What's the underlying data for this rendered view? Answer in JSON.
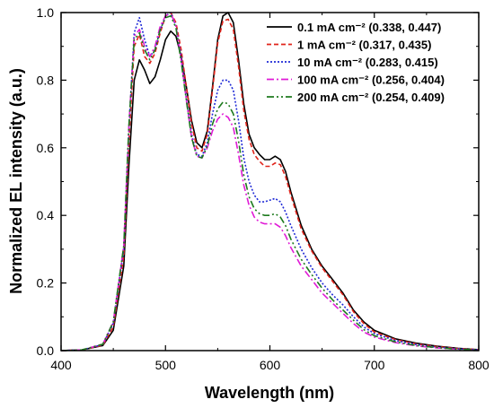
{
  "chart_data": {
    "type": "line",
    "xlabel": "Wavelength (nm)",
    "ylabel": "Normalized EL intensity (a.u.)",
    "xlim": [
      400,
      800
    ],
    "ylim": [
      0,
      1.0
    ],
    "xticks": [
      400,
      500,
      600,
      700,
      800
    ],
    "yticks": [
      0.0,
      0.2,
      0.4,
      0.6,
      0.8,
      1.0
    ],
    "xtick_labels": [
      "400",
      "500",
      "600",
      "700",
      "800"
    ],
    "ytick_labels": [
      "0.0",
      "0.2",
      "0.4",
      "0.6",
      "0.8",
      "1.0"
    ],
    "grid": false,
    "legend_position": "top-right",
    "series": [
      {
        "name": "0.1  mA cm⁻² (0.338, 0.447)",
        "color": "#000000",
        "dash": "solid",
        "x": [
          400,
          420,
          440,
          450,
          460,
          465,
          470,
          475,
          480,
          485,
          490,
          495,
          500,
          505,
          510,
          515,
          520,
          525,
          530,
          535,
          540,
          545,
          550,
          555,
          560,
          565,
          570,
          575,
          580,
          585,
          590,
          595,
          600,
          605,
          610,
          615,
          620,
          630,
          640,
          650,
          660,
          670,
          680,
          690,
          700,
          720,
          740,
          760,
          780,
          800
        ],
        "y": [
          0.0,
          0.002,
          0.015,
          0.06,
          0.25,
          0.55,
          0.8,
          0.86,
          0.83,
          0.79,
          0.81,
          0.86,
          0.92,
          0.945,
          0.93,
          0.87,
          0.78,
          0.68,
          0.615,
          0.6,
          0.65,
          0.78,
          0.92,
          0.99,
          1.0,
          0.97,
          0.86,
          0.73,
          0.64,
          0.6,
          0.58,
          0.565,
          0.565,
          0.575,
          0.565,
          0.53,
          0.47,
          0.37,
          0.3,
          0.25,
          0.21,
          0.17,
          0.12,
          0.085,
          0.06,
          0.035,
          0.022,
          0.013,
          0.007,
          0.003
        ]
      },
      {
        "name": "1  mA cm⁻² (0.317, 0.435)",
        "color": "#e0241b",
        "dash": "5,3",
        "x": [
          400,
          420,
          440,
          450,
          460,
          465,
          470,
          475,
          480,
          485,
          490,
          495,
          500,
          505,
          510,
          515,
          520,
          525,
          530,
          535,
          540,
          545,
          550,
          555,
          560,
          565,
          570,
          575,
          580,
          585,
          590,
          595,
          600,
          605,
          610,
          615,
          620,
          630,
          640,
          650,
          660,
          670,
          680,
          690,
          700,
          720,
          740,
          760,
          780,
          800
        ],
        "y": [
          0.0,
          0.002,
          0.016,
          0.07,
          0.28,
          0.62,
          0.9,
          0.935,
          0.87,
          0.85,
          0.88,
          0.94,
          0.99,
          1.0,
          0.97,
          0.89,
          0.78,
          0.67,
          0.6,
          0.59,
          0.64,
          0.77,
          0.91,
          0.975,
          0.98,
          0.95,
          0.84,
          0.71,
          0.625,
          0.58,
          0.56,
          0.545,
          0.545,
          0.555,
          0.55,
          0.515,
          0.46,
          0.36,
          0.295,
          0.245,
          0.205,
          0.165,
          0.115,
          0.08,
          0.055,
          0.033,
          0.02,
          0.012,
          0.006,
          0.003
        ]
      },
      {
        "name": "10  mA cm⁻² (0.283, 0.415)",
        "color": "#1f2ad6",
        "dash": "2,2",
        "x": [
          400,
          420,
          440,
          450,
          460,
          465,
          470,
          475,
          480,
          485,
          490,
          495,
          500,
          505,
          510,
          515,
          520,
          525,
          530,
          535,
          540,
          545,
          550,
          555,
          560,
          565,
          570,
          575,
          580,
          585,
          590,
          595,
          600,
          605,
          610,
          615,
          620,
          630,
          640,
          650,
          660,
          670,
          680,
          690,
          700,
          720,
          740,
          760,
          780,
          800
        ],
        "y": [
          0.0,
          0.002,
          0.018,
          0.08,
          0.3,
          0.66,
          0.94,
          0.985,
          0.92,
          0.87,
          0.89,
          0.95,
          0.99,
          1.0,
          0.96,
          0.87,
          0.75,
          0.64,
          0.58,
          0.575,
          0.615,
          0.7,
          0.77,
          0.8,
          0.8,
          0.77,
          0.68,
          0.57,
          0.5,
          0.46,
          0.44,
          0.44,
          0.445,
          0.45,
          0.44,
          0.41,
          0.37,
          0.3,
          0.245,
          0.2,
          0.165,
          0.135,
          0.1,
          0.07,
          0.05,
          0.03,
          0.018,
          0.01,
          0.005,
          0.002
        ]
      },
      {
        "name": "100  mA cm⁻² (0.256, 0.404)",
        "color": "#e01bd6",
        "dash": "8,3,2,3",
        "x": [
          400,
          420,
          440,
          450,
          460,
          465,
          470,
          475,
          480,
          485,
          490,
          495,
          500,
          505,
          510,
          515,
          520,
          525,
          530,
          535,
          540,
          545,
          550,
          555,
          560,
          565,
          570,
          575,
          580,
          585,
          590,
          595,
          600,
          605,
          610,
          615,
          620,
          630,
          640,
          650,
          660,
          670,
          680,
          690,
          700,
          720,
          740,
          760,
          780,
          800
        ],
        "y": [
          0.0,
          0.002,
          0.019,
          0.085,
          0.31,
          0.67,
          0.93,
          0.95,
          0.9,
          0.87,
          0.9,
          0.96,
          0.99,
          1.0,
          0.96,
          0.86,
          0.74,
          0.63,
          0.575,
          0.57,
          0.6,
          0.65,
          0.685,
          0.7,
          0.69,
          0.66,
          0.58,
          0.49,
          0.43,
          0.395,
          0.38,
          0.375,
          0.375,
          0.375,
          0.365,
          0.34,
          0.305,
          0.25,
          0.21,
          0.17,
          0.14,
          0.11,
          0.08,
          0.055,
          0.04,
          0.024,
          0.014,
          0.008,
          0.004,
          0.002
        ]
      },
      {
        "name": "200  mA cm⁻² (0.254, 0.409)",
        "color": "#1e7a1e",
        "dash": "8,3,2,3,2,3",
        "x": [
          400,
          420,
          440,
          450,
          460,
          465,
          470,
          475,
          480,
          485,
          490,
          495,
          500,
          505,
          510,
          515,
          520,
          525,
          530,
          535,
          540,
          545,
          550,
          555,
          560,
          565,
          570,
          575,
          580,
          585,
          590,
          595,
          600,
          605,
          610,
          615,
          620,
          630,
          640,
          650,
          660,
          670,
          680,
          690,
          700,
          720,
          740,
          760,
          780,
          800
        ],
        "y": [
          0.0,
          0.002,
          0.019,
          0.085,
          0.31,
          0.67,
          0.92,
          0.94,
          0.89,
          0.86,
          0.89,
          0.95,
          0.985,
          0.99,
          0.955,
          0.855,
          0.74,
          0.63,
          0.575,
          0.57,
          0.605,
          0.67,
          0.715,
          0.735,
          0.73,
          0.7,
          0.62,
          0.52,
          0.455,
          0.42,
          0.405,
          0.4,
          0.4,
          0.405,
          0.395,
          0.37,
          0.33,
          0.27,
          0.225,
          0.185,
          0.15,
          0.12,
          0.09,
          0.062,
          0.044,
          0.026,
          0.015,
          0.009,
          0.004,
          0.002
        ]
      }
    ]
  }
}
